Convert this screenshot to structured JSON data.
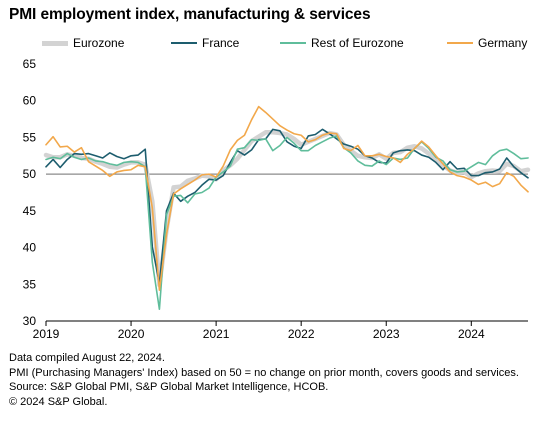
{
  "title": "PMI employment index, manufacturing & services",
  "footer": {
    "line1": "Data compiled August 22, 2024.",
    "line2": "PMI (Purchasing Managers' Index) based on 50 = no change on prior month, covers goods and services.",
    "line3": "Source: S&P Global PMI, S&P Global Market Intelligence, HCOB.",
    "line4": "© 2024 S&P Global."
  },
  "chart_data": {
    "type": "line",
    "title": "PMI employment index, manufacturing & services",
    "xlabel": "",
    "ylabel": "",
    "ylim": [
      30,
      65
    ],
    "yticks": [
      "30",
      "35",
      "40",
      "45",
      "50",
      "55",
      "60",
      "65"
    ],
    "xticks": [
      "2019",
      "2020",
      "2021",
      "2022",
      "2023",
      "2024"
    ],
    "x_start": "2019-01",
    "reference_line": 50,
    "legend_position": "top",
    "series": [
      {
        "name": "Eurozone",
        "color": "#d3d3d3",
        "values": [
          52.6,
          52.3,
          52.3,
          52.7,
          52.5,
          52.2,
          52.1,
          51.7,
          51.4,
          51.0,
          50.9,
          51.3,
          51.6,
          51.6,
          51.3,
          46.3,
          34.9,
          42.4,
          48.2,
          48.3,
          49.1,
          49.4,
          49.8,
          49.7,
          49.3,
          50.5,
          51.2,
          52.1,
          53.3,
          54.5,
          55.1,
          55.7,
          55.7,
          55.6,
          55.4,
          54.8,
          54.0,
          54.4,
          54.8,
          55.2,
          55.6,
          55.4,
          54.0,
          53.2,
          52.5,
          52.3,
          52.2,
          52.7,
          52.1,
          52.9,
          53.0,
          53.6,
          53.8,
          53.5,
          52.8,
          51.9,
          51.2,
          50.5,
          50.2,
          50.3,
          49.6,
          50.1,
          50.4,
          50.5,
          50.4,
          51.4,
          51.1,
          50.4,
          50.6
        ]
      },
      {
        "name": "France",
        "color": "#1d5d6e",
        "values": [
          51.0,
          52.0,
          50.9,
          52.0,
          52.8,
          52.7,
          52.8,
          52.5,
          52.2,
          52.9,
          52.4,
          52.1,
          52.5,
          52.6,
          53.4,
          40.1,
          35.1,
          45.0,
          47.4,
          46.3,
          47.0,
          47.5,
          48.5,
          49.3,
          49.2,
          49.8,
          51.6,
          53.2,
          52.6,
          53.3,
          54.7,
          54.8,
          56.1,
          55.9,
          54.4,
          53.8,
          53.5,
          55.2,
          55.4,
          56.1,
          55.5,
          54.8,
          54.1,
          53.8,
          53.4,
          52.5,
          52.2,
          51.6,
          51.5,
          52.9,
          53.2,
          53.3,
          53.2,
          52.6,
          52.3,
          51.6,
          50.6,
          51.7,
          50.7,
          50.8,
          49.8,
          49.8,
          50.2,
          50.3,
          50.7,
          52.2,
          51.0,
          50.2,
          49.5
        ]
      },
      {
        "name": "Rest of Eurozone",
        "color": "#5fbd9b",
        "values": [
          52.0,
          52.3,
          52.1,
          52.8,
          52.3,
          52.0,
          52.2,
          51.8,
          51.7,
          51.4,
          51.2,
          51.6,
          51.7,
          51.6,
          51.0,
          38.0,
          31.6,
          44.5,
          47.0,
          47.1,
          46.1,
          47.3,
          47.5,
          48.1,
          49.6,
          50.3,
          51.1,
          53.4,
          53.6,
          54.7,
          54.6,
          54.8,
          53.2,
          53.9,
          55.0,
          54.2,
          53.2,
          53.2,
          53.9,
          54.4,
          54.9,
          55.2,
          53.6,
          52.9,
          51.8,
          51.2,
          51.1,
          51.8,
          51.3,
          52.2,
          52.0,
          52.2,
          53.5,
          54.4,
          53.5,
          52.3,
          51.8,
          50.6,
          50.3,
          50.4,
          51.0,
          51.6,
          51.3,
          52.5,
          53.2,
          53.4,
          52.8,
          52.1,
          52.2
        ]
      },
      {
        "name": "Germany",
        "color": "#f2a84b",
        "values": [
          54.0,
          55.1,
          53.7,
          53.8,
          53.0,
          53.6,
          51.7,
          51.1,
          50.5,
          49.7,
          50.3,
          50.5,
          50.6,
          51.2,
          51.0,
          45.4,
          34.2,
          41.8,
          47.3,
          48.0,
          48.6,
          49.2,
          49.9,
          50.0,
          49.6,
          51.1,
          53.3,
          54.6,
          55.3,
          57.4,
          59.2,
          58.4,
          57.5,
          56.6,
          56.0,
          55.5,
          55.3,
          54.4,
          54.7,
          55.3,
          55.6,
          55.5,
          53.5,
          53.2,
          53.9,
          52.5,
          52.5,
          52.7,
          52.4,
          52.2,
          51.6,
          52.7,
          53.5,
          54.5,
          53.7,
          52.5,
          51.4,
          50.3,
          49.8,
          49.6,
          49.2,
          48.6,
          48.9,
          48.3,
          48.7,
          50.2,
          49.7,
          48.5,
          47.6
        ]
      }
    ]
  }
}
